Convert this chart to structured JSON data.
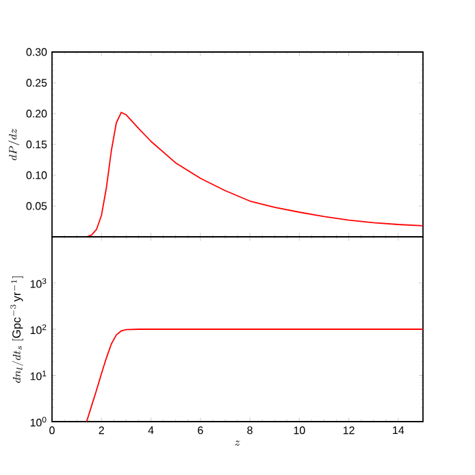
{
  "chart_data": [
    {
      "type": "line",
      "ylabel": "dP/dz",
      "xlim": [
        0,
        15
      ],
      "ylim": [
        0,
        0.3
      ],
      "tick_labels": "y",
      "xticks": [
        0,
        2,
        4,
        6,
        8,
        10,
        12,
        14
      ],
      "yticks": [
        {
          "value": 0.05,
          "label": "0.05"
        },
        {
          "value": 0.1,
          "label": "0.10"
        },
        {
          "value": 0.15,
          "label": "0.15"
        },
        {
          "value": 0.2,
          "label": "0.20"
        },
        {
          "value": 0.25,
          "label": "0.25"
        },
        {
          "value": 0.3,
          "label": "0.30"
        }
      ],
      "x": [
        1.4,
        1.6,
        1.8,
        2.0,
        2.2,
        2.4,
        2.6,
        2.8,
        3.0,
        3.5,
        4.0,
        5.0,
        6.0,
        7.0,
        8.0,
        9.0,
        10.0,
        11.0,
        12.0,
        13.0,
        14.0,
        15.0
      ],
      "series": [
        {
          "color": "#ff0000",
          "values": [
            0.0,
            0.003,
            0.012,
            0.035,
            0.08,
            0.14,
            0.185,
            0.202,
            0.198,
            0.176,
            0.155,
            0.12,
            0.095,
            0.075,
            0.058,
            0.048,
            0.04,
            0.033,
            0.027,
            0.023,
            0.02,
            0.018
          ]
        }
      ],
      "marker": "none",
      "line_style": "solid",
      "grid": false
    },
    {
      "type": "line",
      "xlabel": "z",
      "ylabel": "dn_l/dt_s\\;[\\mathrm{Gpc}^{-3}\\,\\mathrm{yr}^{-1}]",
      "xlim": [
        0,
        15
      ],
      "ylim": [
        1,
        10000
      ],
      "log": true,
      "xticks": [
        0,
        2,
        4,
        6,
        8,
        10,
        12,
        14
      ],
      "yticks": [
        {
          "value": 1,
          "label": "10$^{0}$"
        },
        {
          "value": 10,
          "label": "10$^{1}$"
        },
        {
          "value": 100,
          "label": "10$^{2}$"
        },
        {
          "value": 1000,
          "label": "10$^{3}$"
        }
      ],
      "x": [
        1.4,
        1.6,
        1.8,
        2.0,
        2.2,
        2.4,
        2.6,
        2.8,
        3.0,
        3.5,
        4.0,
        6.0,
        10.0,
        15.0
      ],
      "series": [
        {
          "color": "#ff0000",
          "values": [
            1,
            2.2,
            4.8,
            11,
            24,
            48,
            75,
            92,
            98,
            100,
            100,
            100,
            100,
            100
          ]
        }
      ],
      "marker": "none",
      "line_style": "solid",
      "grid": false
    }
  ]
}
